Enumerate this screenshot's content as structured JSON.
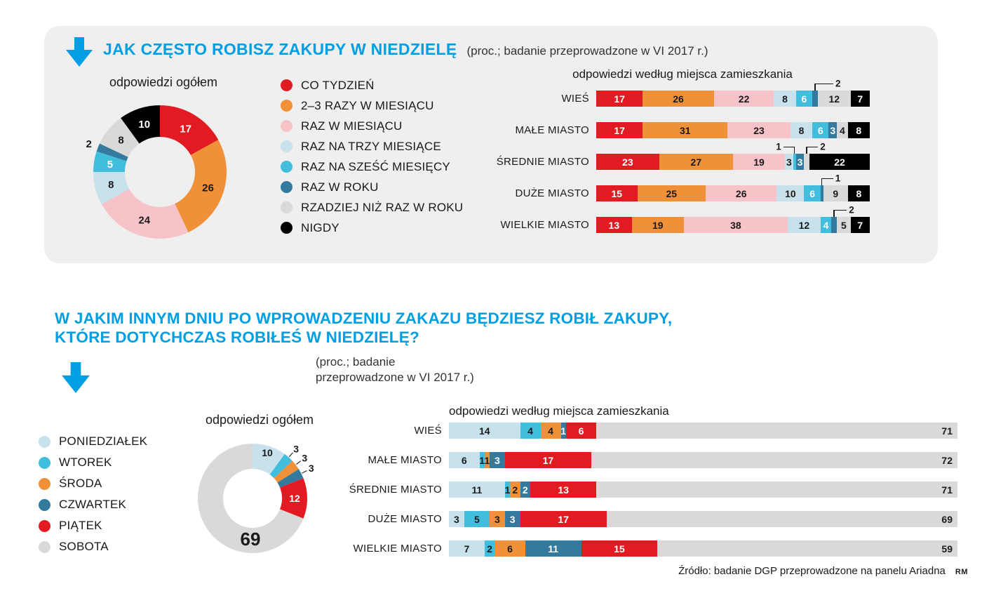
{
  "page": {
    "source": "Źródło: badanie DGP przeprowadzone na panelu Ariadna",
    "credit": "RM"
  },
  "palette": {
    "accent": "#009ee2",
    "panel_bg": "#efeff0",
    "text_dark": "#1a1a1a",
    "red": "#e21b22",
    "orange": "#f0913a",
    "pink": "#f6c3c9",
    "light_blue": "#c7e1ed",
    "cyan": "#41bdde",
    "steel_blue": "#337a9e",
    "gray": "#d9d9d9",
    "black": "#000000"
  },
  "section1": {
    "title": "JAK CZĘSTO ROBISZ ZAKUPY W NIEDZIELĘ",
    "subtitle": "(proc.; badanie przeprowadzone w VI 2017 r.)",
    "donut_title": "odpowiedzi ogółem",
    "bars_title": "odpowiedzi według miejsca zamieszkania",
    "legend": [
      {
        "label": "CO TYDZIEŃ",
        "color": "#e21b22"
      },
      {
        "label": "2–3 RAZY W MIESIĄCU",
        "color": "#f0913a"
      },
      {
        "label": "RAZ W MIESIĄCU",
        "color": "#f6c3c9"
      },
      {
        "label": "RAZ NA TRZY MIESIĄCE",
        "color": "#c7e1ed"
      },
      {
        "label": "RAZ NA SZEŚĆ MIESIĘCY",
        "color": "#41bdde"
      },
      {
        "label": "RAZ W ROKU",
        "color": "#337a9e"
      },
      {
        "label": "RZADZIEJ NIŻ RAZ W ROKU",
        "color": "#d9d9d9"
      },
      {
        "label": "NIGDY",
        "color": "#000000"
      }
    ]
  },
  "section2": {
    "title_line1": "W JAKIM INNYM DNIU PO WPROWADZENIU ZAKAZU BĘDZIESZ ROBIŁ ZAKUPY,",
    "title_line2": "KTÓRE DOTYCHCZAS ROBIŁEŚ W NIEDZIELĘ?",
    "subtitle_line1": "(proc.; badanie",
    "subtitle_line2": "przeprowadzone w VI 2017 r.)",
    "donut_title": "odpowiedzi ogółem",
    "bars_title": "odpowiedzi według miejsca zamieszkania",
    "legend": [
      {
        "label": "PONIEDZIAŁEK",
        "color": "#c7e1ed"
      },
      {
        "label": "WTOREK",
        "color": "#41bdde"
      },
      {
        "label": "ŚRODA",
        "color": "#f0913a"
      },
      {
        "label": "CZWARTEK",
        "color": "#337a9e"
      },
      {
        "label": "PIĄTEK",
        "color": "#e21b22"
      },
      {
        "label": "SOBOTA",
        "color": "#d9d9d9"
      }
    ]
  },
  "chart_data": [
    {
      "id": "donut-frequency-total",
      "type": "pie",
      "title": "odpowiedzi ogółem",
      "categories": [
        "CO TYDZIEŃ",
        "2–3 RAZY W MIESIĄCU",
        "RAZ W MIESIĄCU",
        "RAZ NA TRZY MIESIĄCE",
        "RAZ NA SZEŚĆ MIESIĘCY",
        "RAZ W ROKU",
        "RZADZIEJ NIŻ RAZ W ROKU",
        "NIGDY"
      ],
      "values": [
        17,
        26,
        24,
        8,
        5,
        2,
        8,
        10
      ],
      "colors": [
        "#e21b22",
        "#f0913a",
        "#f6c3c9",
        "#c7e1ed",
        "#41bdde",
        "#337a9e",
        "#d9d9d9",
        "#000000"
      ],
      "label_colors": [
        "#ffffff",
        "#1a1a1a",
        "#1a1a1a",
        "#1a1a1a",
        "#ffffff",
        "#1a1a1a",
        "#1a1a1a",
        "#ffffff"
      ],
      "label_outside": [
        5
      ],
      "legend_position": "right"
    },
    {
      "id": "bars-frequency-by-place",
      "type": "bar",
      "stacked": true,
      "orientation": "horizontal",
      "title": "odpowiedzi według miejsca zamieszkania",
      "series": [
        "CO TYDZIEŃ",
        "2–3 RAZY W MIESIĄCU",
        "RAZ W MIESIĄCU",
        "RAZ NA TRZY MIESIĄCE",
        "RAZ NA SZEŚĆ MIESIĘCY",
        "RAZ W ROKU",
        "RZADZIEJ NIŻ RAZ W ROKU",
        "NIGDY"
      ],
      "colors": [
        "#e21b22",
        "#f0913a",
        "#f6c3c9",
        "#c7e1ed",
        "#41bdde",
        "#337a9e",
        "#d9d9d9",
        "#000000"
      ],
      "num_colors": [
        "#ffffff",
        "#1a1a1a",
        "#1a1a1a",
        "#1a1a1a",
        "#ffffff",
        "#ffffff",
        "#1a1a1a",
        "#ffffff"
      ],
      "xlim": [
        0,
        100
      ],
      "rows": [
        {
          "label": "WIEŚ",
          "values": [
            17,
            26,
            22,
            8,
            6,
            2,
            12,
            7
          ],
          "callouts": [
            {
              "i": 5,
              "dx": 26
            }
          ]
        },
        {
          "label": "MAŁE MIASTO",
          "values": [
            17,
            31,
            23,
            8,
            6,
            3,
            4,
            8
          ],
          "callouts": []
        },
        {
          "label": "ŚREDNIE MIASTO",
          "values": [
            23,
            27,
            19,
            3,
            1,
            3,
            2,
            22
          ],
          "callouts": [
            {
              "i": 4,
              "dx": -16
            },
            {
              "i": 6,
              "dx": 16
            }
          ]
        },
        {
          "label": "DUŻE MIASTO",
          "values": [
            15,
            25,
            26,
            10,
            6,
            1,
            9,
            8
          ],
          "callouts": [
            {
              "i": 5,
              "dx": 16
            }
          ]
        },
        {
          "label": "WIELKIE MIASTO",
          "values": [
            13,
            19,
            38,
            12,
            4,
            2,
            5,
            7
          ],
          "callouts": [
            {
              "i": 5,
              "dx": 18
            }
          ]
        }
      ]
    },
    {
      "id": "donut-day-total",
      "type": "pie",
      "title": "odpowiedzi ogółem",
      "categories": [
        "PONIEDZIAŁEK",
        "WTOREK",
        "ŚRODA",
        "CZWARTEK",
        "PIĄTEK",
        "SOBOTA"
      ],
      "values": [
        10,
        3,
        3,
        3,
        12,
        69
      ],
      "colors": [
        "#c7e1ed",
        "#41bdde",
        "#f0913a",
        "#337a9e",
        "#e21b22",
        "#d9d9d9"
      ],
      "label_colors": [
        "#1a1a1a",
        "#1a1a1a",
        "#1a1a1a",
        "#1a1a1a",
        "#ffffff",
        "#1a1a1a"
      ],
      "label_outside": [
        1,
        2,
        3
      ],
      "legend_position": "left"
    },
    {
      "id": "bars-day-by-place",
      "type": "bar",
      "stacked": true,
      "orientation": "horizontal",
      "title": "odpowiedzi według miejsca zamieszkania",
      "series": [
        "PONIEDZIAŁEK",
        "WTOREK",
        "ŚRODA",
        "CZWARTEK",
        "PIĄTEK",
        "SOBOTA"
      ],
      "colors": [
        "#c7e1ed",
        "#41bdde",
        "#f0913a",
        "#337a9e",
        "#e21b22",
        "#d9d9d9"
      ],
      "num_colors": [
        "#1a1a1a",
        "#1a1a1a",
        "#1a1a1a",
        "#ffffff",
        "#ffffff",
        "#1a1a1a"
      ],
      "last_num_align": "right",
      "xlim": [
        0,
        100
      ],
      "rows": [
        {
          "label": "WIEŚ",
          "values": [
            14,
            4,
            4,
            1,
            6,
            71
          ]
        },
        {
          "label": "MAŁE MIASTO",
          "values": [
            6,
            1,
            1,
            3,
            17,
            72
          ]
        },
        {
          "label": "ŚREDNIE MIASTO",
          "values": [
            11,
            1,
            2,
            2,
            13,
            71
          ]
        },
        {
          "label": "DUŻE MIASTO",
          "values": [
            3,
            5,
            3,
            3,
            17,
            69
          ]
        },
        {
          "label": "WIELKIE MIASTO",
          "values": [
            7,
            2,
            6,
            11,
            15,
            59
          ]
        }
      ]
    }
  ]
}
